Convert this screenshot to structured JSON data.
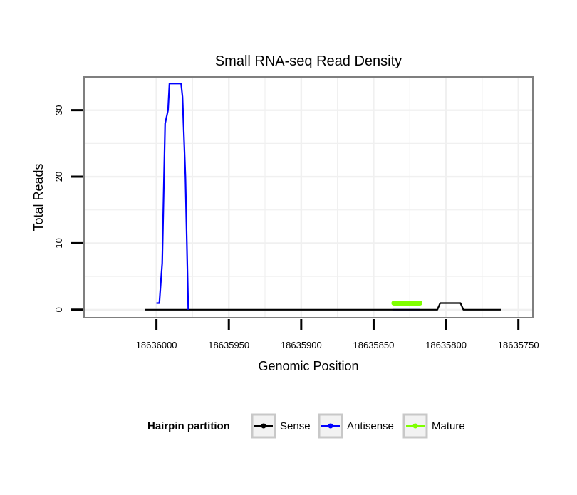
{
  "chart_data": {
    "type": "line",
    "title": "Small RNA-seq Read Density",
    "xlabel": "Genomic Position",
    "ylabel": "Total Reads",
    "xlim": [
      18636050,
      18635740
    ],
    "ylim": [
      -1.2,
      35
    ],
    "x_reversed": true,
    "x_ticks": [
      {
        "value": 18636000,
        "label": "18636000"
      },
      {
        "value": 18635950,
        "label": "18635950"
      },
      {
        "value": 18635900,
        "label": "18635900"
      },
      {
        "value": 18635850,
        "label": "18635850"
      },
      {
        "value": 18635800,
        "label": "18635800"
      },
      {
        "value": 18635750,
        "label": "18635750"
      }
    ],
    "y_ticks": [
      {
        "value": 0,
        "label": "0"
      },
      {
        "value": 10,
        "label": "10"
      },
      {
        "value": 20,
        "label": "20"
      },
      {
        "value": 30,
        "label": "30"
      }
    ],
    "grid": true,
    "legend": {
      "title": "Hairpin partition",
      "position": "bottom",
      "entries": [
        {
          "name": "Sense",
          "color": "#000000"
        },
        {
          "name": "Antisense",
          "color": "#0000ff"
        },
        {
          "name": "Mature",
          "color": "#7fff00"
        }
      ]
    },
    "series": [
      {
        "name": "Antisense",
        "color": "#0000ff",
        "x": [
          18636000,
          18635998,
          18635996,
          18635994,
          18635992,
          18635991,
          18635989,
          18635987,
          18635985,
          18635983,
          18635982,
          18635980,
          18635978
        ],
        "y": [
          1,
          1,
          7,
          28,
          30,
          34,
          34,
          34,
          34,
          34,
          32,
          20,
          0
        ]
      },
      {
        "name": "Sense",
        "color": "#000000",
        "x": [
          18636008,
          18635806,
          18635804,
          18635790,
          18635788,
          18635762
        ],
        "y": [
          0,
          0,
          1,
          1,
          0,
          0
        ]
      },
      {
        "name": "Mature",
        "color": "#7fff00",
        "x": [
          18635836,
          18635818
        ],
        "y": [
          1,
          1
        ]
      }
    ],
    "baseline_segments": [
      {
        "name": "Mature",
        "color": "#0000ff",
        "x": [
          18635837,
          18635818
        ],
        "y": [
          0,
          0
        ]
      }
    ]
  }
}
